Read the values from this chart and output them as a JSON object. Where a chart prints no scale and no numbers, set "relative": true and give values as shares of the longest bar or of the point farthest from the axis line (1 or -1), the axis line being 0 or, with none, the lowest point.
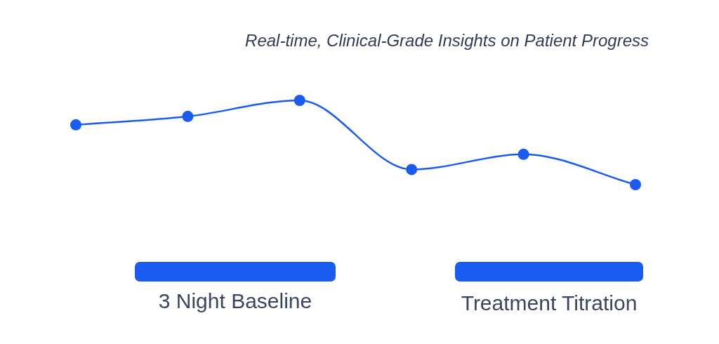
{
  "chart_data": {
    "type": "line",
    "title": "Real-time, Clinical-Grade Insights on Patient Progress",
    "categories": [
      null,
      null,
      null,
      null,
      null,
      null
    ],
    "relative": true,
    "marker": "circle",
    "grid": false,
    "legend": false,
    "series": [
      {
        "color": "#1a5cf0",
        "values": [
          0.71,
          0.81,
          1,
          0.18,
          0.36,
          0
        ]
      }
    ],
    "annotations": [
      "3 Night Baseline",
      "Treatment Titration"
    ]
  }
}
